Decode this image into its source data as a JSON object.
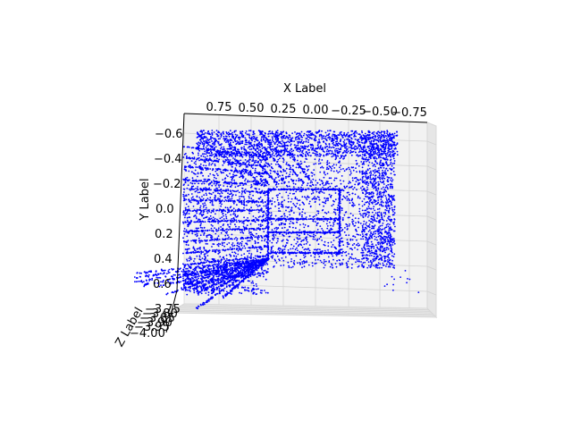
{
  "chart_data": {
    "type": "scatter",
    "projection": "3d",
    "title": "",
    "xlabel": "X Label",
    "ylabel": "Y Label",
    "zlabel": "Z Label",
    "x_ticks": [
      "0.75",
      "0.50",
      "0.25",
      "0.00",
      "−0.25",
      "−0.50",
      "−0.75"
    ],
    "y_ticks": [
      "−0.6",
      "−0.4",
      "−0.2",
      "0.0",
      "0.2",
      "0.4",
      "0.6"
    ],
    "z_ticks": [
      "−3.75",
      "−3.80",
      "−3.85",
      "−3.90",
      "−3.95",
      "−4.00"
    ],
    "xlim": [
      0.95,
      -0.85
    ],
    "ylim": [
      -0.65,
      0.68
    ],
    "zlim": [
      -3.73,
      -4.02
    ],
    "point_color": "#0000ff",
    "grid": true,
    "series": [
      {
        "structure": "room-corridor point cloud (far wall, side walls, floor streaks, inner box)",
        "x": [
          0.9,
          0.6,
          0.3,
          0.0,
          -0.3,
          -0.6,
          -0.75,
          0.88,
          0.85,
          0.8,
          0.7,
          -0.7,
          -0.72,
          0.4,
          0.2,
          -0.1,
          -0.35,
          0.3,
          0.0,
          -0.3,
          0.1,
          -0.2
        ],
        "y": [
          -0.6,
          -0.6,
          -0.6,
          -0.6,
          -0.6,
          -0.6,
          -0.55,
          0.55,
          0.62,
          0.4,
          0.6,
          0.45,
          0.1,
          0.3,
          0.3,
          0.3,
          0.3,
          -0.05,
          -0.05,
          -0.05,
          0.15,
          0.15
        ]
      }
    ]
  }
}
